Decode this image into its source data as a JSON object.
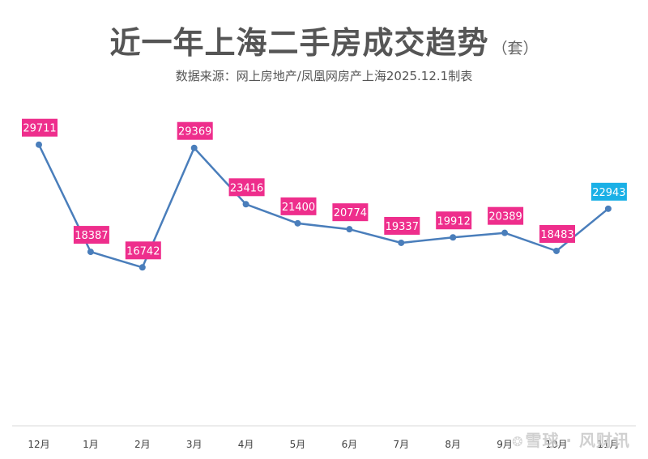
{
  "header": {
    "title": "近一年上海二手房成交趋势",
    "unit": "（套）",
    "subtitle": "数据来源：网上房地产/凤凰网房产上海2025.12.1制表"
  },
  "watermark": {
    "text": "雪球 · 风财讯"
  },
  "chart_data": {
    "type": "line",
    "title": "近一年上海二手房成交趋势",
    "unit": "套",
    "categories": [
      "12月",
      "1月",
      "2月",
      "3月",
      "4月",
      "5月",
      "6月",
      "7月",
      "8月",
      "9月",
      "10月",
      "11月"
    ],
    "values": [
      29711,
      18387,
      16742,
      29369,
      23416,
      21400,
      20774,
      19337,
      19912,
      20389,
      18483,
      22943
    ],
    "xlabel": "",
    "ylabel": "",
    "ylim": [
      0,
      45000
    ],
    "grid": false,
    "legend": "none",
    "colors": {
      "line": "#4a7ebb",
      "label_default": "#ee2e8c",
      "label_latest": "#1ab0e6",
      "axis": "#d9d9d9",
      "tick_text": "#404040"
    }
  }
}
